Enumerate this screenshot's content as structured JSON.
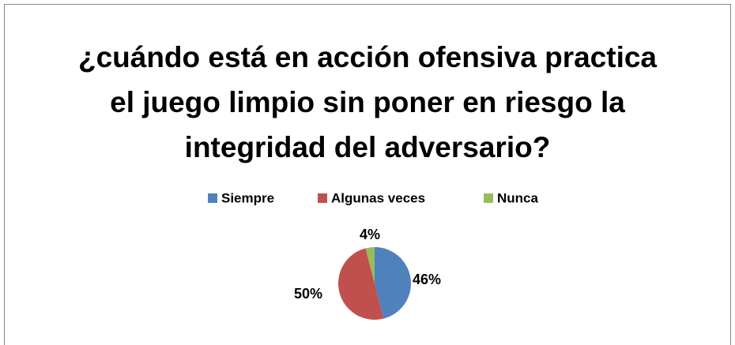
{
  "chart_data": {
    "type": "pie",
    "title": "¿cuándo está en acción ofensiva practica el juego limpio sin poner en riesgo la integridad del adversario?",
    "series": [
      {
        "name": "Siempre",
        "color": "#4f81bd"
      },
      {
        "name": "Algunas veces",
        "color": "#c0504d"
      },
      {
        "name": "Nunca",
        "color": "#9bbb59"
      }
    ],
    "categories": [
      "Siempre",
      "Algunas veces",
      "Nunca"
    ],
    "values": [
      46,
      50,
      4
    ],
    "value_labels": [
      "46%",
      "50%",
      "4%"
    ],
    "legend": "top"
  }
}
